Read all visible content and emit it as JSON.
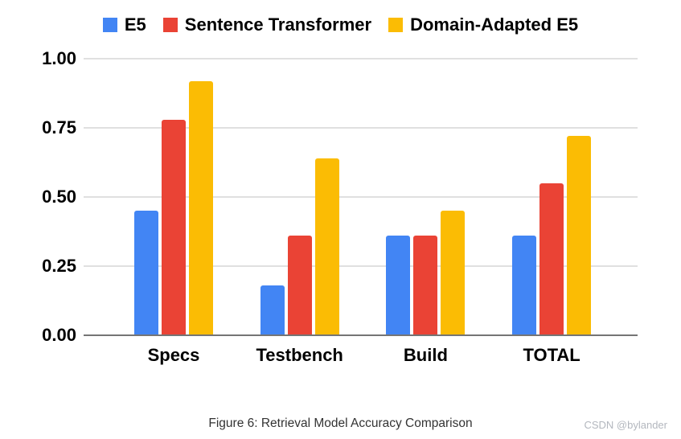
{
  "chart_data": {
    "type": "bar",
    "title": "",
    "categories": [
      "Specs",
      "Testbench",
      "Build",
      "TOTAL"
    ],
    "series": [
      {
        "name": "E5",
        "color": "#4285F4",
        "values": [
          0.45,
          0.18,
          0.36,
          0.36
        ]
      },
      {
        "name": "Sentence Transformer",
        "color": "#EA4335",
        "values": [
          0.78,
          0.36,
          0.36,
          0.55
        ]
      },
      {
        "name": "Domain-Adapted E5",
        "color": "#FBBC04",
        "values": [
          0.92,
          0.64,
          0.45,
          0.72
        ]
      }
    ],
    "ylim": [
      0,
      1
    ],
    "yticks": [
      "0.00",
      "0.25",
      "0.50",
      "0.75",
      "1.00"
    ],
    "grid": true,
    "legend_position": "top",
    "grid_color": "#e0e0e0",
    "baseline_color": "#757575"
  },
  "caption": "Figure 6: Retrieval Model Accuracy Comparison",
  "watermark": "CSDN @bylander"
}
